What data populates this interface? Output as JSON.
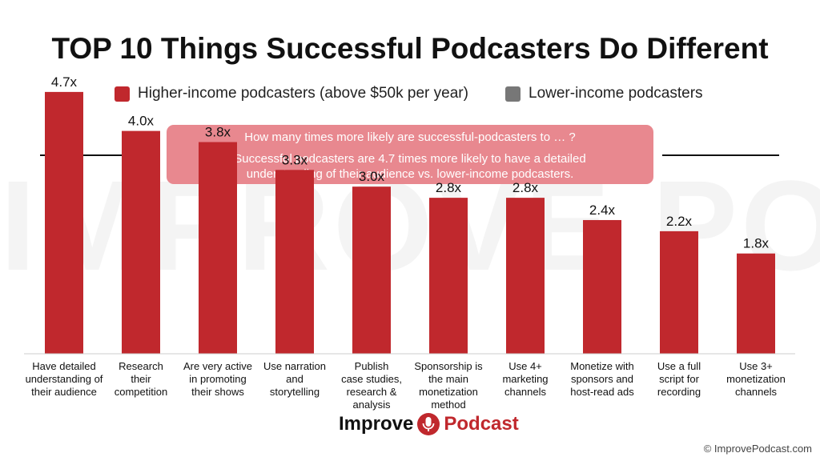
{
  "watermark": "IMPROVE PODCAST",
  "logo": {
    "word1": "Improve",
    "word2": "Podcast"
  },
  "copyright": "© ImprovePodcast.com",
  "callout": {
    "question": "How many times more likely are successful-podcasters to … ?",
    "answer": "Successful podcasters are 4.7 times more likely to have a detailed understanding of their audience vs. lower-income podcasters."
  },
  "colors": {
    "higher": "#c0282d",
    "lower": "#777777",
    "callout_bg": "#e8888f"
  },
  "chart_data": {
    "type": "bar",
    "title": "TOP 10 Things Successful Podcasters Do Different",
    "legend": [
      {
        "label": "Higher-income podcasters (above $50k per year)",
        "color": "#c0282d"
      },
      {
        "label": "Lower-income podcasters",
        "color": "#777777"
      }
    ],
    "categories": [
      [
        "Have detailed",
        "understanding of",
        "their audience"
      ],
      [
        "Research",
        "their",
        "competition"
      ],
      [
        "Are very active",
        "in promoting",
        "their shows"
      ],
      [
        "Use narration",
        "and",
        "storytelling"
      ],
      [
        "Publish",
        "case studies,",
        "research &",
        "analysis"
      ],
      [
        "Sponsorship is",
        "the main",
        "monetization",
        "method"
      ],
      [
        "Use 4+",
        "marketing",
        "channels"
      ],
      [
        "Monetize with",
        "sponsors and",
        "host-read ads"
      ],
      [
        "Use a full",
        "script for",
        "recording"
      ],
      [
        "Use 3+",
        "monetization",
        "channels"
      ]
    ],
    "series": [
      {
        "name": "Higher-income podcasters (above $50k per year)",
        "values": [
          4.7,
          4.0,
          3.8,
          3.3,
          3.0,
          2.8,
          2.8,
          2.4,
          2.2,
          1.8
        ],
        "labels": [
          "4.7x",
          "4.0x",
          "3.8x",
          "3.3x",
          "3.0x",
          "2.8x",
          "2.8x",
          "2.4x",
          "2.2x",
          "1.8x"
        ]
      }
    ],
    "ylim": [
      0,
      5
    ],
    "grid": false,
    "legend_position": "top"
  }
}
